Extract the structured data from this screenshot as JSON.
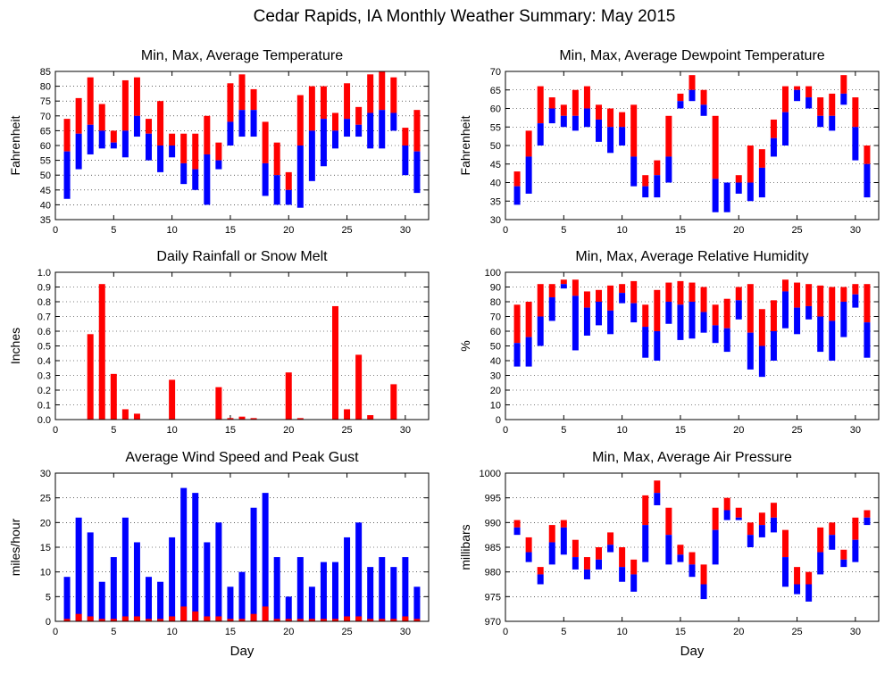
{
  "page_title": "Cedar Rapids, IA Monthly Weather Summary: May 2015",
  "colors": {
    "high": "#ff0000",
    "low": "#0000ff",
    "frame": "#000000",
    "grid": "#000000"
  },
  "chart_data": [
    {
      "id": "temp",
      "type": "bar",
      "title": "Min, Max, Average Temperature",
      "xlabel": "",
      "ylabel": "Fahrenheit",
      "xlim": [
        0,
        32
      ],
      "ylim": [
        35,
        85
      ],
      "xticks": [
        "0",
        "5",
        "10",
        "15",
        "20",
        "25",
        "30"
      ],
      "yticks": [
        "35",
        "40",
        "45",
        "50",
        "55",
        "60",
        "65",
        "70",
        "75",
        "80",
        "85"
      ],
      "grid": "horizontal dotted",
      "x": [
        1,
        2,
        3,
        4,
        5,
        6,
        7,
        8,
        9,
        10,
        11,
        12,
        13,
        14,
        15,
        16,
        17,
        18,
        19,
        20,
        21,
        22,
        23,
        24,
        25,
        26,
        27,
        28,
        29,
        30,
        31
      ],
      "min": [
        42,
        52,
        57,
        59,
        59,
        56,
        63,
        55,
        51,
        56,
        47,
        45,
        40,
        52,
        60,
        63,
        63,
        43,
        40,
        40,
        39,
        48,
        53,
        59,
        63,
        63,
        59,
        59,
        65,
        50,
        44
      ],
      "avg": [
        58,
        64,
        67,
        65,
        61,
        65,
        70,
        64,
        60,
        60,
        54,
        52,
        57,
        55,
        68,
        72,
        72,
        54,
        50,
        45,
        60,
        65,
        69,
        65,
        69,
        67,
        71,
        72,
        71,
        60,
        58
      ],
      "max": [
        69,
        76,
        83,
        74,
        65,
        82,
        83,
        69,
        75,
        64,
        64,
        64,
        70,
        61,
        81,
        84,
        79,
        68,
        61,
        51,
        77,
        80,
        80,
        71,
        81,
        73,
        84,
        85,
        83,
        66,
        72
      ]
    },
    {
      "id": "dewpoint",
      "type": "bar",
      "title": "Min, Max, Average Dewpoint Temperature",
      "xlabel": "",
      "ylabel": "Fahrenheit",
      "xlim": [
        0,
        32
      ],
      "ylim": [
        30,
        70
      ],
      "xticks": [
        "0",
        "5",
        "10",
        "15",
        "20",
        "25",
        "30"
      ],
      "yticks": [
        "30",
        "35",
        "40",
        "45",
        "50",
        "55",
        "60",
        "65",
        "70"
      ],
      "grid": "horizontal dotted",
      "x": [
        1,
        2,
        3,
        4,
        5,
        6,
        7,
        8,
        9,
        10,
        11,
        12,
        13,
        14,
        15,
        16,
        17,
        18,
        19,
        20,
        21,
        22,
        23,
        24,
        25,
        26,
        27,
        28,
        29,
        30,
        31
      ],
      "min": [
        34,
        37,
        50,
        56,
        55,
        54,
        55,
        51,
        48,
        50,
        39,
        36,
        36,
        40,
        60,
        62,
        58,
        32,
        32,
        37,
        35,
        36,
        47,
        50,
        62,
        60,
        55,
        54,
        61,
        46,
        36
      ],
      "avg": [
        39,
        47,
        56,
        60,
        58,
        58,
        60,
        57,
        55,
        55,
        47,
        39,
        42,
        47,
        62,
        65,
        61,
        41,
        40,
        40,
        40,
        44,
        52,
        59,
        65,
        63,
        58,
        58,
        64,
        55,
        45
      ],
      "max": [
        43,
        54,
        66,
        63,
        61,
        65,
        66,
        61,
        60,
        59,
        61,
        42,
        46,
        58,
        64,
        69,
        65,
        58,
        40,
        42,
        50,
        49,
        57,
        66,
        66,
        66,
        63,
        64,
        69,
        63,
        50
      ]
    },
    {
      "id": "rain",
      "type": "bar",
      "title": "Daily Rainfall or Snow Melt",
      "xlabel": "",
      "ylabel": "Inches",
      "xlim": [
        0,
        32
      ],
      "ylim": [
        0,
        1
      ],
      "xticks": [
        "0",
        "5",
        "10",
        "15",
        "20",
        "25",
        "30"
      ],
      "yticks": [
        "0.0",
        "0.1",
        "0.2",
        "0.3",
        "0.4",
        "0.5",
        "0.6",
        "0.7",
        "0.8",
        "0.9",
        "1.0"
      ],
      "grid": "horizontal dotted",
      "x": [
        1,
        2,
        3,
        4,
        5,
        6,
        7,
        8,
        9,
        10,
        11,
        12,
        13,
        14,
        15,
        16,
        17,
        18,
        19,
        20,
        21,
        22,
        23,
        24,
        25,
        26,
        27,
        28,
        29,
        30,
        31
      ],
      "values": [
        0,
        0,
        0.58,
        0.92,
        0.31,
        0.07,
        0.04,
        0,
        0,
        0.27,
        0,
        0,
        0,
        0.22,
        0.01,
        0.02,
        0.01,
        0,
        0,
        0.32,
        0.01,
        0,
        0,
        0.77,
        0.07,
        0.44,
        0.03,
        0,
        0.24,
        0,
        0
      ]
    },
    {
      "id": "humidity",
      "type": "bar",
      "title": "Min, Max, Average Relative Humidity",
      "xlabel": "",
      "ylabel": "%",
      "xlim": [
        0,
        32
      ],
      "ylim": [
        0,
        100
      ],
      "xticks": [
        "0",
        "5",
        "10",
        "15",
        "20",
        "25",
        "30"
      ],
      "yticks": [
        "0",
        "10",
        "20",
        "30",
        "40",
        "50",
        "60",
        "70",
        "80",
        "90",
        "100"
      ],
      "grid": "horizontal dotted",
      "x": [
        1,
        2,
        3,
        4,
        5,
        6,
        7,
        8,
        9,
        10,
        11,
        12,
        13,
        14,
        15,
        16,
        17,
        18,
        19,
        20,
        21,
        22,
        23,
        24,
        25,
        26,
        27,
        28,
        29,
        30,
        31
      ],
      "min": [
        36,
        36,
        50,
        67,
        89,
        47,
        57,
        64,
        58,
        79,
        66,
        42,
        40,
        65,
        54,
        55,
        59,
        52,
        46,
        68,
        34,
        29,
        40,
        62,
        58,
        68,
        46,
        40,
        56,
        76,
        42
      ],
      "avg": [
        52,
        56,
        70,
        83,
        92,
        84,
        76,
        80,
        74,
        86,
        79,
        63,
        60,
        80,
        78,
        80,
        73,
        64,
        62,
        81,
        59,
        50,
        60,
        87,
        76,
        77,
        70,
        67,
        80,
        85,
        66
      ],
      "max": [
        78,
        80,
        92,
        92,
        95,
        95,
        87,
        88,
        91,
        92,
        94,
        78,
        88,
        93,
        94,
        93,
        90,
        78,
        82,
        90,
        92,
        75,
        81,
        95,
        93,
        92,
        91,
        90,
        90,
        92,
        92
      ]
    },
    {
      "id": "wind",
      "type": "bar",
      "title": "Average Wind Speed and Peak Gust",
      "xlabel": "Day",
      "ylabel": "miles/hour",
      "xlim": [
        0,
        32
      ],
      "ylim": [
        0,
        30
      ],
      "xticks": [
        "0",
        "5",
        "10",
        "15",
        "20",
        "25",
        "30"
      ],
      "yticks": [
        "0",
        "5",
        "10",
        "15",
        "20",
        "25",
        "30"
      ],
      "grid": "horizontal dotted",
      "x": [
        1,
        2,
        3,
        4,
        5,
        6,
        7,
        8,
        9,
        10,
        11,
        12,
        13,
        14,
        15,
        16,
        17,
        18,
        19,
        20,
        21,
        22,
        23,
        24,
        25,
        26,
        27,
        28,
        29,
        30,
        31
      ],
      "peak_gust": [
        9,
        21,
        18,
        8,
        13,
        21,
        16,
        9,
        8,
        17,
        27,
        26,
        16,
        20,
        7,
        10,
        23,
        26,
        13,
        5,
        13,
        7,
        12,
        12,
        17,
        20,
        11,
        13,
        11,
        13,
        7
      ],
      "avg_speed": [
        0.5,
        1.5,
        1,
        0.5,
        0.5,
        1,
        1,
        0.5,
        0.5,
        1,
        3,
        2,
        1,
        1,
        0.5,
        0.5,
        1.5,
        3,
        0.5,
        0.5,
        0.5,
        0.5,
        0.5,
        0.5,
        1,
        1,
        0.5,
        0.5,
        0.5,
        1,
        0.5
      ]
    },
    {
      "id": "pressure",
      "type": "bar",
      "title": "Min, Max, Average Air Pressure",
      "xlabel": "Day",
      "ylabel": "millibars",
      "xlim": [
        0,
        32
      ],
      "ylim": [
        970,
        1000
      ],
      "xticks": [
        "0",
        "5",
        "10",
        "15",
        "20",
        "25",
        "30"
      ],
      "yticks": [
        "970",
        "975",
        "980",
        "985",
        "990",
        "995",
        "1000"
      ],
      "grid": "horizontal dotted",
      "x": [
        1,
        2,
        3,
        4,
        5,
        6,
        7,
        8,
        9,
        10,
        11,
        12,
        13,
        14,
        15,
        16,
        17,
        18,
        19,
        20,
        21,
        22,
        23,
        24,
        25,
        26,
        27,
        28,
        29,
        30,
        31
      ],
      "min": [
        987.5,
        982,
        977.5,
        981.5,
        983.5,
        980.5,
        978.5,
        980.5,
        984,
        978,
        976,
        982,
        993.5,
        981.5,
        982,
        979,
        974.5,
        981.5,
        990.5,
        990.5,
        985,
        987,
        988,
        977,
        975.5,
        974,
        979.5,
        984.5,
        981,
        982,
        989.5
      ],
      "avg": [
        989,
        984,
        979.5,
        986,
        989,
        983,
        980.5,
        982.5,
        985.5,
        981,
        979.5,
        989.5,
        996,
        987.5,
        983.5,
        981.5,
        977.5,
        988.5,
        992.5,
        991,
        987.5,
        989.5,
        991,
        983,
        977.5,
        977.5,
        984,
        987.5,
        982.5,
        986.5,
        991
      ],
      "max": [
        990.5,
        987,
        981,
        989.5,
        990.5,
        986.5,
        983,
        985,
        988,
        985,
        982.5,
        995.5,
        998.5,
        993,
        985.5,
        984,
        981.5,
        993,
        995,
        993,
        990,
        992,
        994,
        988.5,
        981,
        980,
        989,
        990,
        984.5,
        991,
        992.5
      ]
    }
  ]
}
